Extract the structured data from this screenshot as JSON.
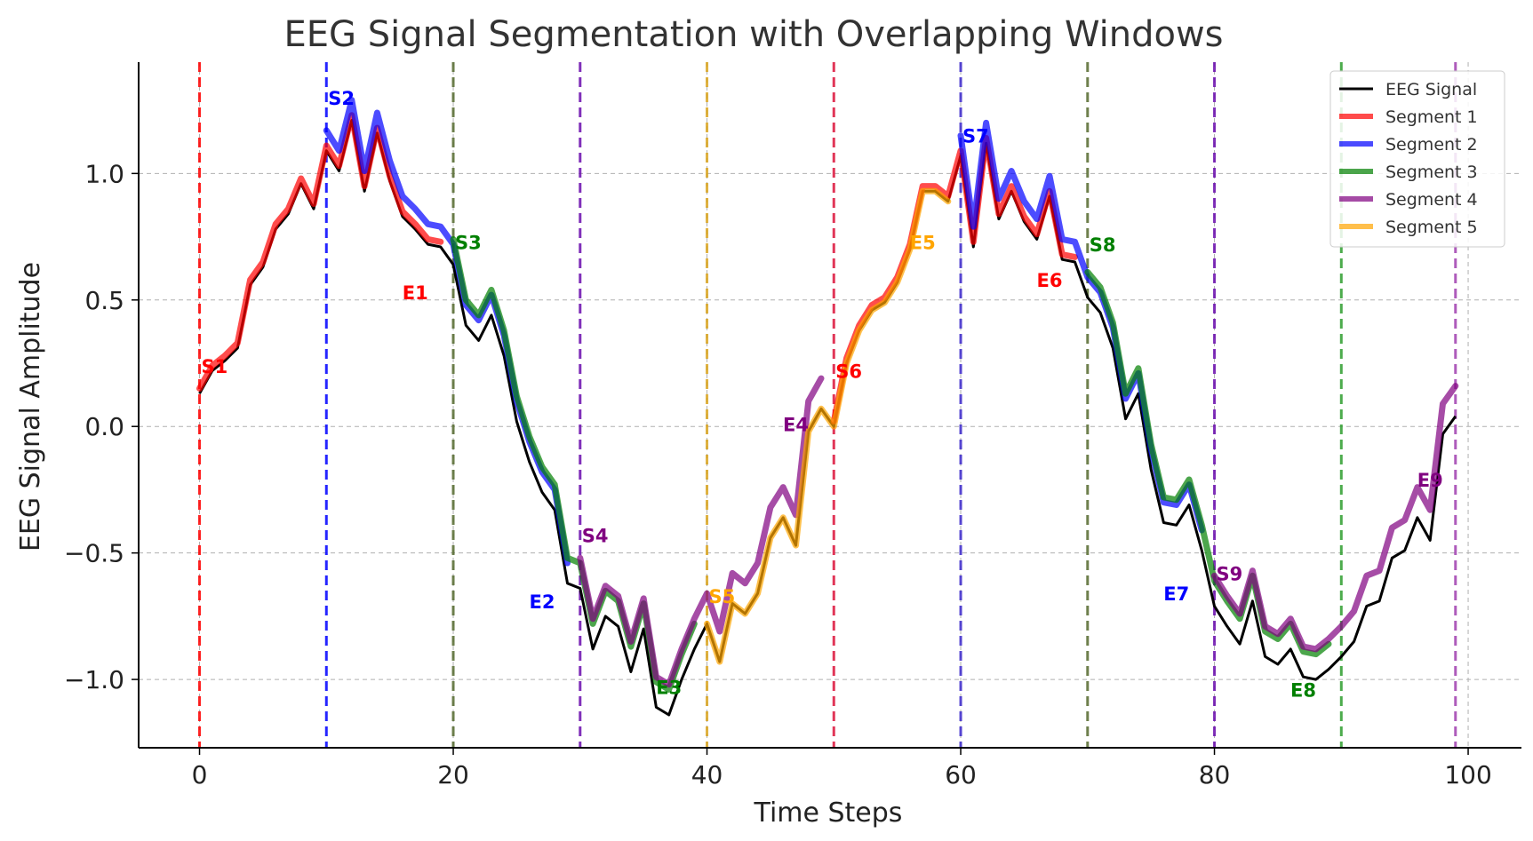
{
  "chart_data": {
    "type": "line",
    "title": "EEG Signal Segmentation with Overlapping Windows",
    "xlabel": "Time Steps",
    "ylabel": "EEG Signal Amplitude",
    "xlim": [
      -4.8,
      104.2
    ],
    "ylim": [
      -1.27,
      1.44
    ],
    "x_ticks": [
      0,
      20,
      40,
      60,
      80,
      100
    ],
    "y_ticks": [
      -1.0,
      -0.5,
      0.0,
      0.5,
      1.0
    ],
    "x_tick_labels": [
      "0",
      "20",
      "40",
      "60",
      "80",
      "100"
    ],
    "y_tick_labels": [
      "−1.0",
      "−0.5",
      "0.0",
      "0.5",
      "1.0"
    ],
    "grid": true,
    "legend_position": "top-right",
    "signal": {
      "name": "EEG Signal",
      "color": "#000000",
      "x": [
        0,
        1,
        2,
        3,
        4,
        5,
        6,
        7,
        8,
        9,
        10,
        11,
        12,
        13,
        14,
        15,
        16,
        17,
        18,
        19,
        20,
        21,
        22,
        23,
        24,
        25,
        26,
        27,
        28,
        29,
        30,
        31,
        32,
        33,
        34,
        35,
        36,
        37,
        38,
        39,
        40,
        41,
        42,
        43,
        44,
        45,
        46,
        47,
        48,
        49,
        50,
        51,
        52,
        53,
        54,
        55,
        56,
        57,
        58,
        59,
        60,
        61,
        62,
        63,
        64,
        65,
        66,
        67,
        68,
        69,
        70,
        71,
        72,
        73,
        74,
        75,
        76,
        77,
        78,
        79,
        80,
        81,
        82,
        83,
        84,
        85,
        86,
        87,
        88,
        89,
        90,
        91,
        92,
        93,
        94,
        95,
        96,
        97,
        98,
        99
      ],
      "y": [
        0.13,
        0.22,
        0.26,
        0.31,
        0.56,
        0.63,
        0.78,
        0.84,
        0.96,
        0.86,
        1.09,
        1.01,
        1.21,
        0.93,
        1.16,
        0.97,
        0.83,
        0.78,
        0.72,
        0.71,
        0.64,
        0.4,
        0.34,
        0.44,
        0.28,
        0.02,
        -0.14,
        -0.26,
        -0.33,
        -0.62,
        -0.64,
        -0.88,
        -0.75,
        -0.79,
        -0.97,
        -0.8,
        -1.11,
        -1.14,
        -1.0,
        -0.88,
        -0.78,
        -0.93,
        -0.7,
        -0.74,
        -0.66,
        -0.44,
        -0.36,
        -0.47,
        -0.02,
        0.07,
        0.0,
        0.25,
        0.38,
        0.46,
        0.49,
        0.57,
        0.7,
        0.93,
        0.93,
        0.89,
        1.07,
        0.71,
        1.12,
        0.82,
        0.93,
        0.81,
        0.74,
        0.91,
        0.66,
        0.65,
        0.51,
        0.45,
        0.31,
        0.03,
        0.13,
        -0.17,
        -0.38,
        -0.39,
        -0.31,
        -0.49,
        -0.71,
        -0.79,
        -0.86,
        -0.69,
        -0.91,
        -0.94,
        -0.88,
        -0.99,
        -1.0,
        -0.96,
        -0.91,
        -0.85,
        -0.71,
        -0.69,
        -0.52,
        -0.49,
        -0.36,
        -0.45,
        -0.03,
        0.04
      ]
    },
    "segments": [
      {
        "name": "Segment 1",
        "color": "#ff0000",
        "windows": [
          [
            0,
            19
          ],
          [
            50,
            69
          ]
        ],
        "offset": 0.02
      },
      {
        "name": "Segment 2",
        "color": "#0000ff",
        "windows": [
          [
            10,
            29
          ],
          [
            60,
            79
          ]
        ],
        "offset": 0.08
      },
      {
        "name": "Segment 3",
        "color": "#008000",
        "windows": [
          [
            20,
            39
          ],
          [
            70,
            89
          ]
        ],
        "offset": 0.1
      },
      {
        "name": "Segment 4",
        "color": "#800080",
        "windows": [
          [
            30,
            49
          ],
          [
            80,
            99
          ]
        ],
        "offset": 0.12
      },
      {
        "name": "Segment 5",
        "color": "#ffa500",
        "windows": [
          [
            40,
            59
          ]
        ],
        "offset": 0.0
      }
    ],
    "boundaries": [
      {
        "x": 0,
        "color": "#ff0000"
      },
      {
        "x": 10,
        "color": "#0000ff"
      },
      {
        "x": 20,
        "color": "#556b2f"
      },
      {
        "x": 30,
        "color": "#6a0dad"
      },
      {
        "x": 40,
        "color": "#daa520"
      },
      {
        "x": 50,
        "color": "#dc143c"
      },
      {
        "x": 60,
        "color": "#3b28cc"
      },
      {
        "x": 70,
        "color": "#556b2f"
      },
      {
        "x": 80,
        "color": "#6a0dad"
      },
      {
        "x": 90,
        "color": "#2e9e2e"
      },
      {
        "x": 99,
        "color": "#a040b0"
      }
    ],
    "markers": [
      {
        "label": "S1",
        "x": 0,
        "y": 0.24,
        "color": "#ff0000",
        "anchor": "start"
      },
      {
        "label": "S2",
        "x": 10,
        "y": 1.3,
        "color": "#0000ff",
        "anchor": "start"
      },
      {
        "label": "S3",
        "x": 20,
        "y": 0.73,
        "color": "#008000",
        "anchor": "start"
      },
      {
        "label": "S4",
        "x": 30,
        "y": -0.43,
        "color": "#800080",
        "anchor": "start"
      },
      {
        "label": "S5",
        "x": 40,
        "y": -0.67,
        "color": "#ffa500",
        "anchor": "start"
      },
      {
        "label": "S6",
        "x": 50,
        "y": 0.22,
        "color": "#ff0000",
        "anchor": "start"
      },
      {
        "label": "S7",
        "x": 60,
        "y": 1.15,
        "color": "#0000ff",
        "anchor": "start"
      },
      {
        "label": "S8",
        "x": 70,
        "y": 0.72,
        "color": "#008000",
        "anchor": "start"
      },
      {
        "label": "S9",
        "x": 80,
        "y": -0.58,
        "color": "#800080",
        "anchor": "start"
      },
      {
        "label": "E1",
        "x": 19,
        "y": 0.53,
        "color": "#ff0000",
        "anchor": "end"
      },
      {
        "label": "E2",
        "x": 29,
        "y": -0.69,
        "color": "#0000ff",
        "anchor": "end"
      },
      {
        "label": "E3",
        "x": 39,
        "y": -1.03,
        "color": "#008000",
        "anchor": "end"
      },
      {
        "label": "E4",
        "x": 49,
        "y": 0.01,
        "color": "#800080",
        "anchor": "end"
      },
      {
        "label": "E5",
        "x": 59,
        "y": 0.73,
        "color": "#ffa500",
        "anchor": "end"
      },
      {
        "label": "E6",
        "x": 69,
        "y": 0.58,
        "color": "#ff0000",
        "anchor": "end"
      },
      {
        "label": "E7",
        "x": 79,
        "y": -0.66,
        "color": "#0000ff",
        "anchor": "end"
      },
      {
        "label": "E8",
        "x": 89,
        "y": -1.04,
        "color": "#008000",
        "anchor": "end"
      },
      {
        "label": "E9",
        "x": 99,
        "y": -0.21,
        "color": "#800080",
        "anchor": "end"
      }
    ]
  }
}
